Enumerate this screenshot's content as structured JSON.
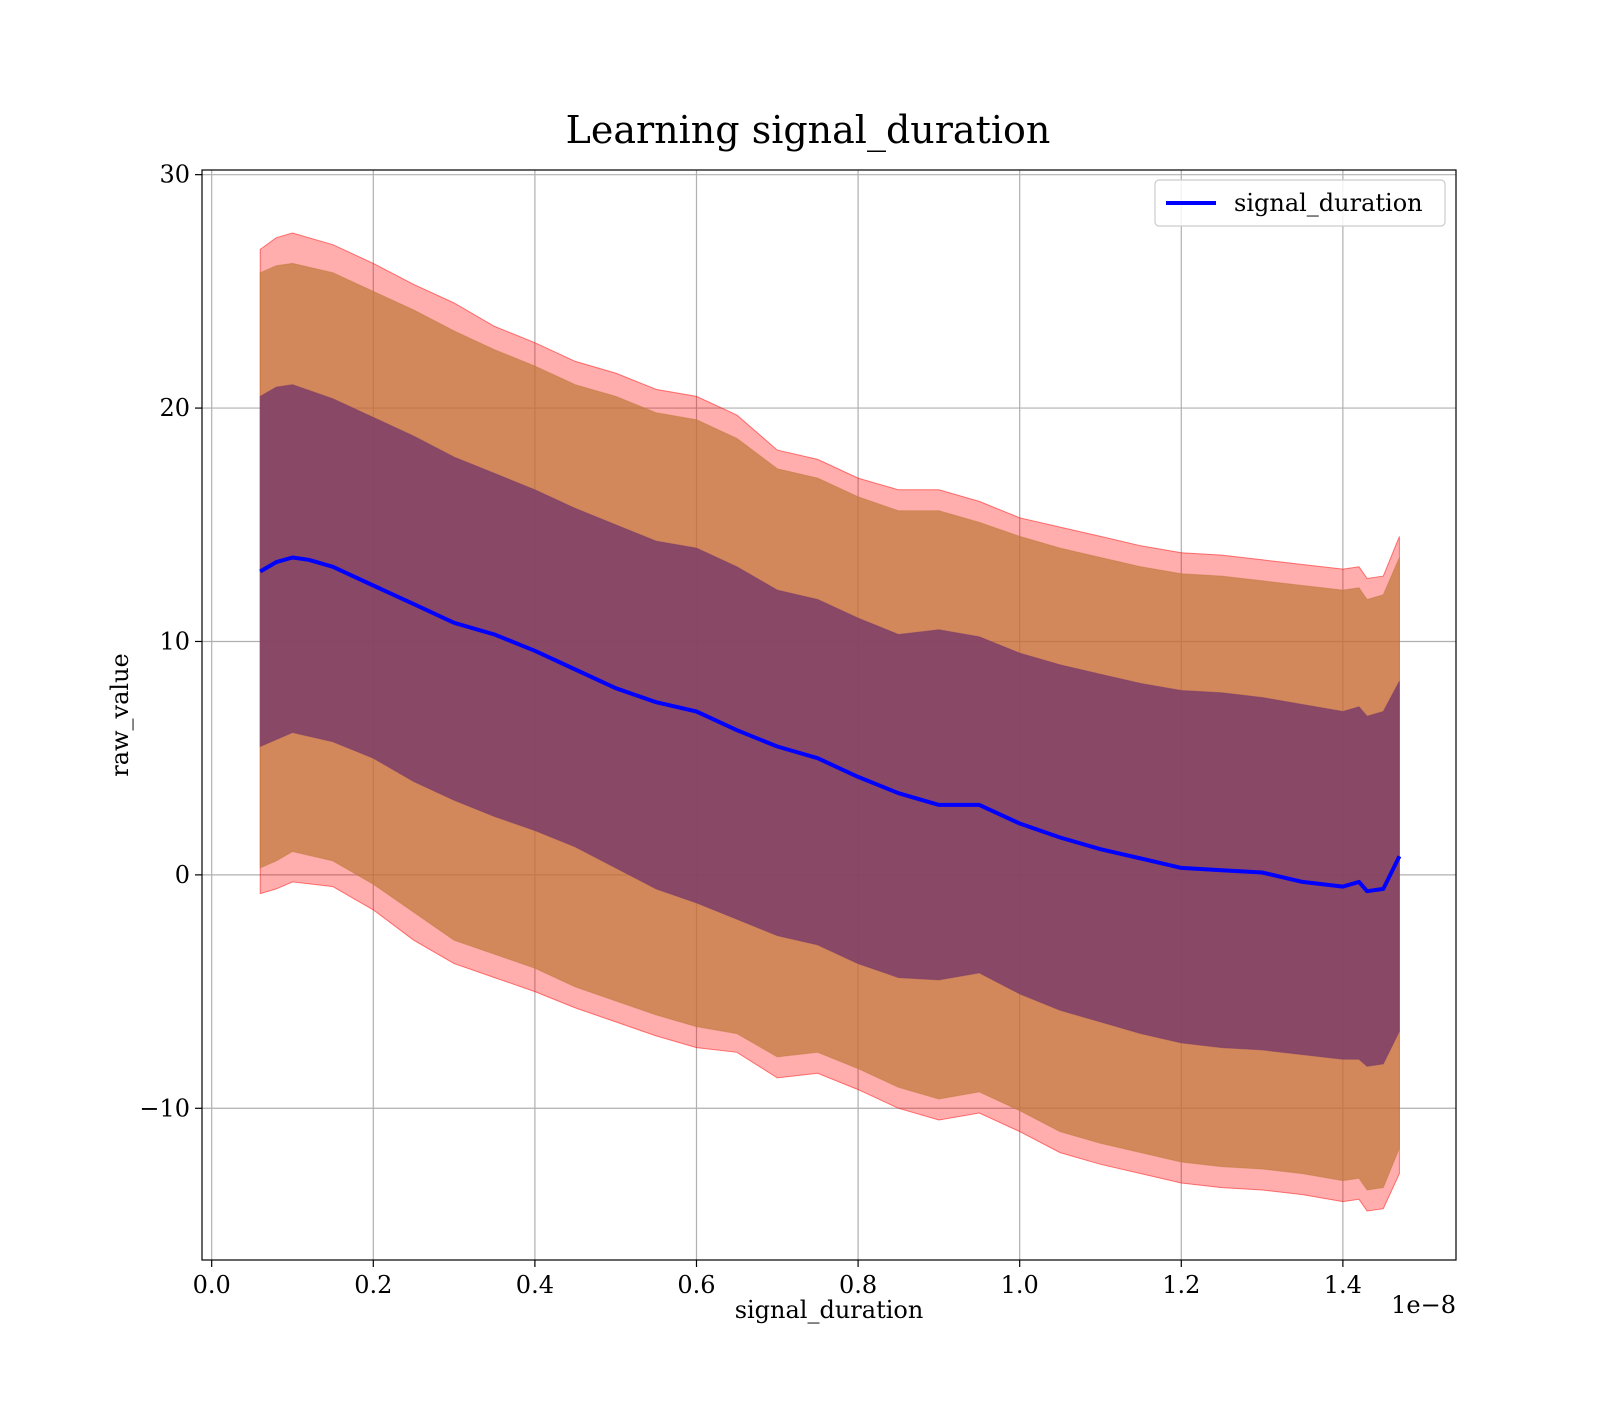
{
  "chart_data": {
    "type": "line",
    "title": "Learning signal_duration",
    "xlabel": "signal_duration",
    "ylabel": "raw_value",
    "x_offset_text": "1e−8",
    "xlim": [
      -0.012,
      1.54
    ],
    "ylim": [
      -16.5,
      30.2
    ],
    "x_ticks": [
      0.0,
      0.2,
      0.4,
      0.6,
      0.8,
      1.0,
      1.2,
      1.4
    ],
    "x_tick_labels": [
      "0.0",
      "0.2",
      "0.4",
      "0.6",
      "0.8",
      "1.0",
      "1.2",
      "1.4"
    ],
    "y_ticks": [
      -10,
      0,
      10,
      20,
      30
    ],
    "y_tick_labels": [
      "−10",
      "0",
      "10",
      "20",
      "30"
    ],
    "grid": true,
    "legend": {
      "position": "top-right",
      "entries": [
        "signal_duration"
      ]
    },
    "colors": {
      "mean_line": "#0000ff",
      "band_outer": "#ff0000",
      "band_middle": "#c07a3a",
      "band_inner": "#7a3a6a",
      "grid": "#b0b0b0"
    },
    "series": [
      {
        "name": "signal_duration",
        "x": [
          0.06,
          0.08,
          0.1,
          0.12,
          0.15,
          0.2,
          0.25,
          0.3,
          0.35,
          0.4,
          0.45,
          0.5,
          0.55,
          0.6,
          0.65,
          0.7,
          0.75,
          0.8,
          0.85,
          0.9,
          0.95,
          1.0,
          1.05,
          1.1,
          1.15,
          1.2,
          1.25,
          1.3,
          1.35,
          1.4,
          1.42,
          1.43,
          1.45,
          1.47
        ],
        "y": [
          13.0,
          13.4,
          13.6,
          13.5,
          13.2,
          12.4,
          11.6,
          10.8,
          10.3,
          9.6,
          8.8,
          8.0,
          7.4,
          7.0,
          6.2,
          5.5,
          5.0,
          4.2,
          3.5,
          3.0,
          3.0,
          2.2,
          1.6,
          1.1,
          0.7,
          0.3,
          0.2,
          0.1,
          -0.3,
          -0.5,
          -0.3,
          -0.7,
          -0.6,
          0.8
        ]
      }
    ],
    "bands": [
      {
        "role": "outer",
        "x": [
          0.06,
          0.08,
          0.1,
          0.15,
          0.2,
          0.25,
          0.3,
          0.35,
          0.4,
          0.45,
          0.5,
          0.55,
          0.6,
          0.65,
          0.7,
          0.75,
          0.8,
          0.85,
          0.9,
          0.95,
          1.0,
          1.05,
          1.1,
          1.15,
          1.2,
          1.25,
          1.3,
          1.35,
          1.4,
          1.42,
          1.43,
          1.45,
          1.47
        ],
        "upper": [
          26.8,
          27.3,
          27.5,
          27.0,
          26.2,
          25.3,
          24.5,
          23.5,
          22.8,
          22.0,
          21.5,
          20.8,
          20.5,
          19.7,
          18.2,
          17.8,
          17.0,
          16.5,
          16.5,
          16.0,
          15.3,
          14.9,
          14.5,
          14.1,
          13.8,
          13.7,
          13.5,
          13.3,
          13.1,
          13.2,
          12.7,
          12.8,
          14.5
        ],
        "lower": [
          -0.8,
          -0.6,
          -0.3,
          -0.5,
          -1.5,
          -2.8,
          -3.8,
          -4.4,
          -5.0,
          -5.7,
          -6.3,
          -6.9,
          -7.4,
          -7.6,
          -8.7,
          -8.5,
          -9.2,
          -10.0,
          -10.5,
          -10.2,
          -11.0,
          -11.9,
          -12.4,
          -12.8,
          -13.2,
          -13.4,
          -13.5,
          -13.7,
          -14.0,
          -13.9,
          -14.4,
          -14.3,
          -12.8
        ]
      },
      {
        "role": "middle",
        "x": [
          0.06,
          0.08,
          0.1,
          0.15,
          0.2,
          0.25,
          0.3,
          0.35,
          0.4,
          0.45,
          0.5,
          0.55,
          0.6,
          0.65,
          0.7,
          0.75,
          0.8,
          0.85,
          0.9,
          0.95,
          1.0,
          1.05,
          1.1,
          1.15,
          1.2,
          1.25,
          1.3,
          1.35,
          1.4,
          1.42,
          1.43,
          1.45,
          1.47
        ],
        "upper": [
          25.8,
          26.1,
          26.2,
          25.8,
          25.0,
          24.2,
          23.3,
          22.5,
          21.8,
          21.0,
          20.5,
          19.8,
          19.5,
          18.7,
          17.4,
          17.0,
          16.2,
          15.6,
          15.6,
          15.1,
          14.5,
          14.0,
          13.6,
          13.2,
          12.9,
          12.8,
          12.6,
          12.4,
          12.2,
          12.3,
          11.8,
          12.0,
          13.6
        ],
        "lower": [
          0.3,
          0.6,
          1.0,
          0.6,
          -0.4,
          -1.6,
          -2.8,
          -3.4,
          -4.0,
          -4.8,
          -5.4,
          -6.0,
          -6.5,
          -6.8,
          -7.8,
          -7.6,
          -8.3,
          -9.1,
          -9.6,
          -9.3,
          -10.1,
          -11.0,
          -11.5,
          -11.9,
          -12.3,
          -12.5,
          -12.6,
          -12.8,
          -13.1,
          -13.0,
          -13.5,
          -13.4,
          -11.7
        ]
      },
      {
        "role": "inner",
        "x": [
          0.06,
          0.08,
          0.1,
          0.15,
          0.2,
          0.25,
          0.3,
          0.35,
          0.4,
          0.45,
          0.5,
          0.55,
          0.6,
          0.65,
          0.7,
          0.75,
          0.8,
          0.85,
          0.9,
          0.95,
          1.0,
          1.05,
          1.1,
          1.15,
          1.2,
          1.25,
          1.3,
          1.35,
          1.4,
          1.42,
          1.43,
          1.45,
          1.47
        ],
        "upper": [
          20.5,
          20.9,
          21.0,
          20.4,
          19.6,
          18.8,
          17.9,
          17.2,
          16.5,
          15.7,
          15.0,
          14.3,
          14.0,
          13.2,
          12.2,
          11.8,
          11.0,
          10.3,
          10.5,
          10.2,
          9.5,
          9.0,
          8.6,
          8.2,
          7.9,
          7.8,
          7.6,
          7.3,
          7.0,
          7.2,
          6.8,
          7.0,
          8.3
        ],
        "lower": [
          5.5,
          5.8,
          6.1,
          5.7,
          5.0,
          4.0,
          3.2,
          2.5,
          1.9,
          1.2,
          0.3,
          -0.6,
          -1.2,
          -1.9,
          -2.6,
          -3.0,
          -3.8,
          -4.4,
          -4.5,
          -4.2,
          -5.1,
          -5.8,
          -6.3,
          -6.8,
          -7.2,
          -7.4,
          -7.5,
          -7.7,
          -7.9,
          -7.9,
          -8.2,
          -8.1,
          -6.7
        ]
      }
    ]
  }
}
